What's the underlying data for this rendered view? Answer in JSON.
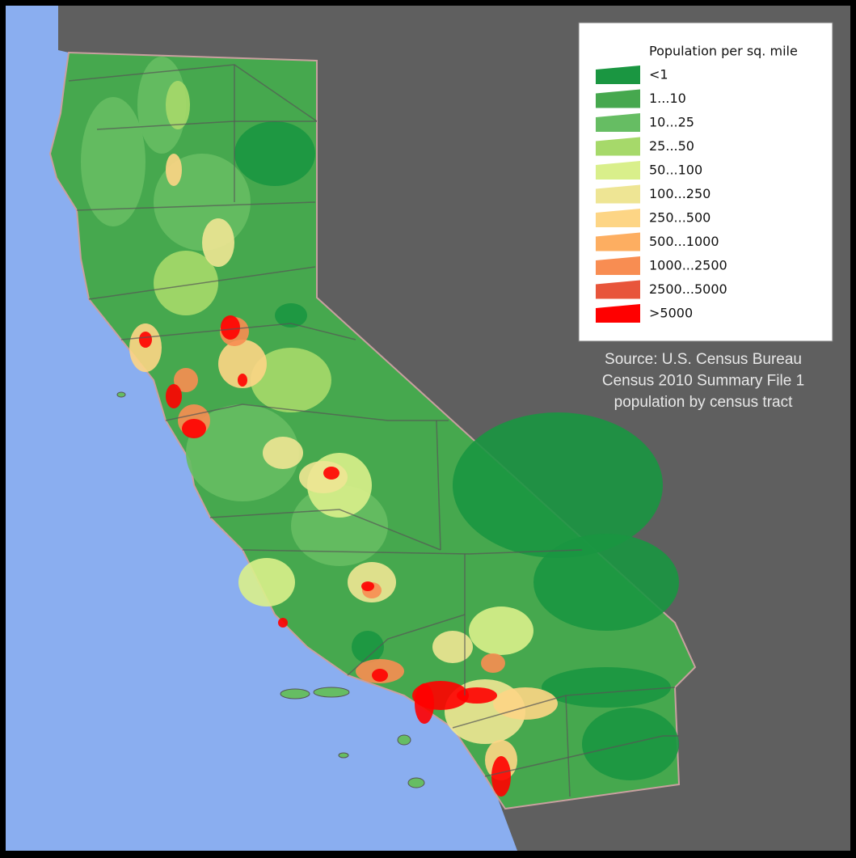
{
  "legend": {
    "title": "Population per sq. mile",
    "items": [
      {
        "label": "<1",
        "color": "#1a9641"
      },
      {
        "label": "1...10",
        "color": "#46a84e"
      },
      {
        "label": "10...25",
        "color": "#66bd63"
      },
      {
        "label": "25...50",
        "color": "#a6d96a"
      },
      {
        "label": "50...100",
        "color": "#d9ef8b"
      },
      {
        "label": "100...250",
        "color": "#eee594"
      },
      {
        "label": "250...500",
        "color": "#fdd585"
      },
      {
        "label": "500...1000",
        "color": "#fdae61"
      },
      {
        "label": "1000...2500",
        "color": "#f88d52"
      },
      {
        "label": "2500...5000",
        "color": "#e8553b"
      },
      {
        "label": ">5000",
        "color": "#ff0000"
      }
    ]
  },
  "source": {
    "lines": [
      "Source: U.S. Census Bureau",
      "Census 2010 Summary File 1",
      "population by census tract"
    ]
  }
}
